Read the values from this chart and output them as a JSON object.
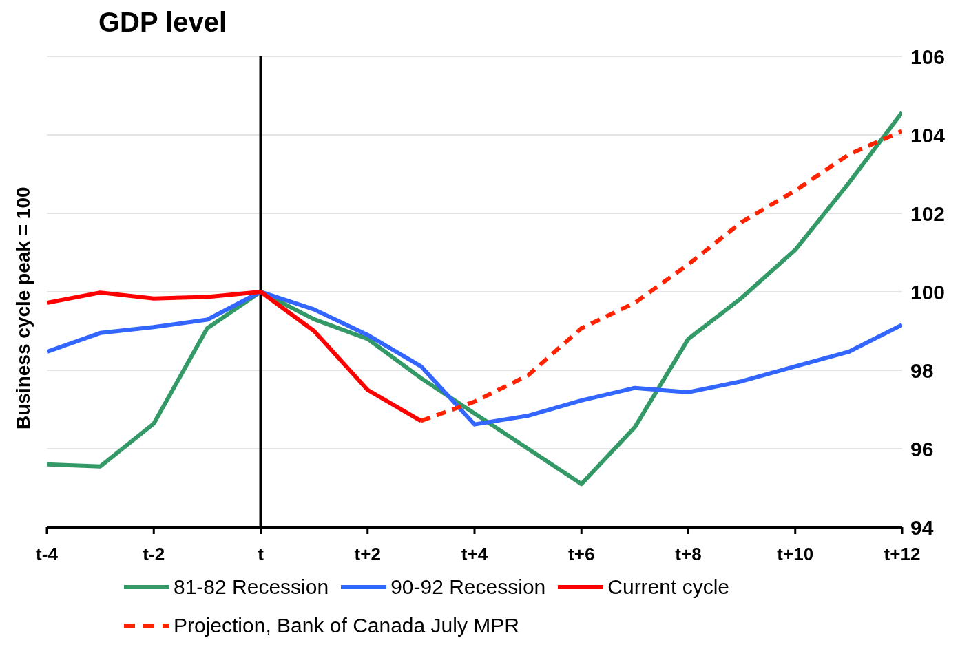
{
  "chart_data": {
    "type": "line",
    "title": "GDP level",
    "ylabel": "Business cycle peak = 100",
    "categories": [
      "t-4",
      null,
      "t-2",
      null,
      "t",
      null,
      "t+2",
      null,
      "t+4",
      null,
      "t+6",
      null,
      "t+8",
      null,
      "t+10",
      null,
      "t+12"
    ],
    "series": [
      {
        "name": "81-82 Recession",
        "color": "#339966",
        "values": [
          95.6,
          95.55,
          96.64,
          99.07,
          100,
          99.3,
          98.8,
          97.8,
          96.9,
          96.0,
          95.1,
          96.55,
          98.8,
          99.85,
          101.07,
          102.77,
          104.58
        ]
      },
      {
        "name": "90-92  Recession",
        "color": "#3366ff",
        "values": [
          98.47,
          98.95,
          99.1,
          99.29,
          100,
          99.55,
          98.9,
          98.1,
          96.62,
          96.84,
          97.23,
          97.55,
          97.44,
          97.72,
          98.1,
          98.47,
          99.16
        ]
      },
      {
        "name": "Current cycle",
        "color": "#ff0000",
        "values": [
          99.72,
          99.98,
          99.83,
          99.87,
          100,
          99.0,
          97.5,
          96.71,
          null,
          null,
          null,
          null,
          null,
          null,
          null,
          null,
          null
        ]
      },
      {
        "name": "Projection, Bank of Canada July MPR",
        "color": "#ff2200",
        "line_style": "dashed",
        "values": [
          null,
          null,
          null,
          null,
          null,
          null,
          null,
          96.71,
          97.2,
          97.87,
          99.07,
          99.72,
          100.7,
          101.78,
          102.58,
          103.5,
          104.1
        ]
      }
    ],
    "ylim": [
      94,
      106
    ],
    "yticks": [
      94,
      96,
      98,
      100,
      102,
      104,
      106
    ],
    "ref_lines": [
      {
        "axis": "x",
        "value": "t",
        "color": "#000000"
      }
    ],
    "grid": "y",
    "legend": "bottom",
    "marker": "none",
    "line_style": "solid"
  }
}
